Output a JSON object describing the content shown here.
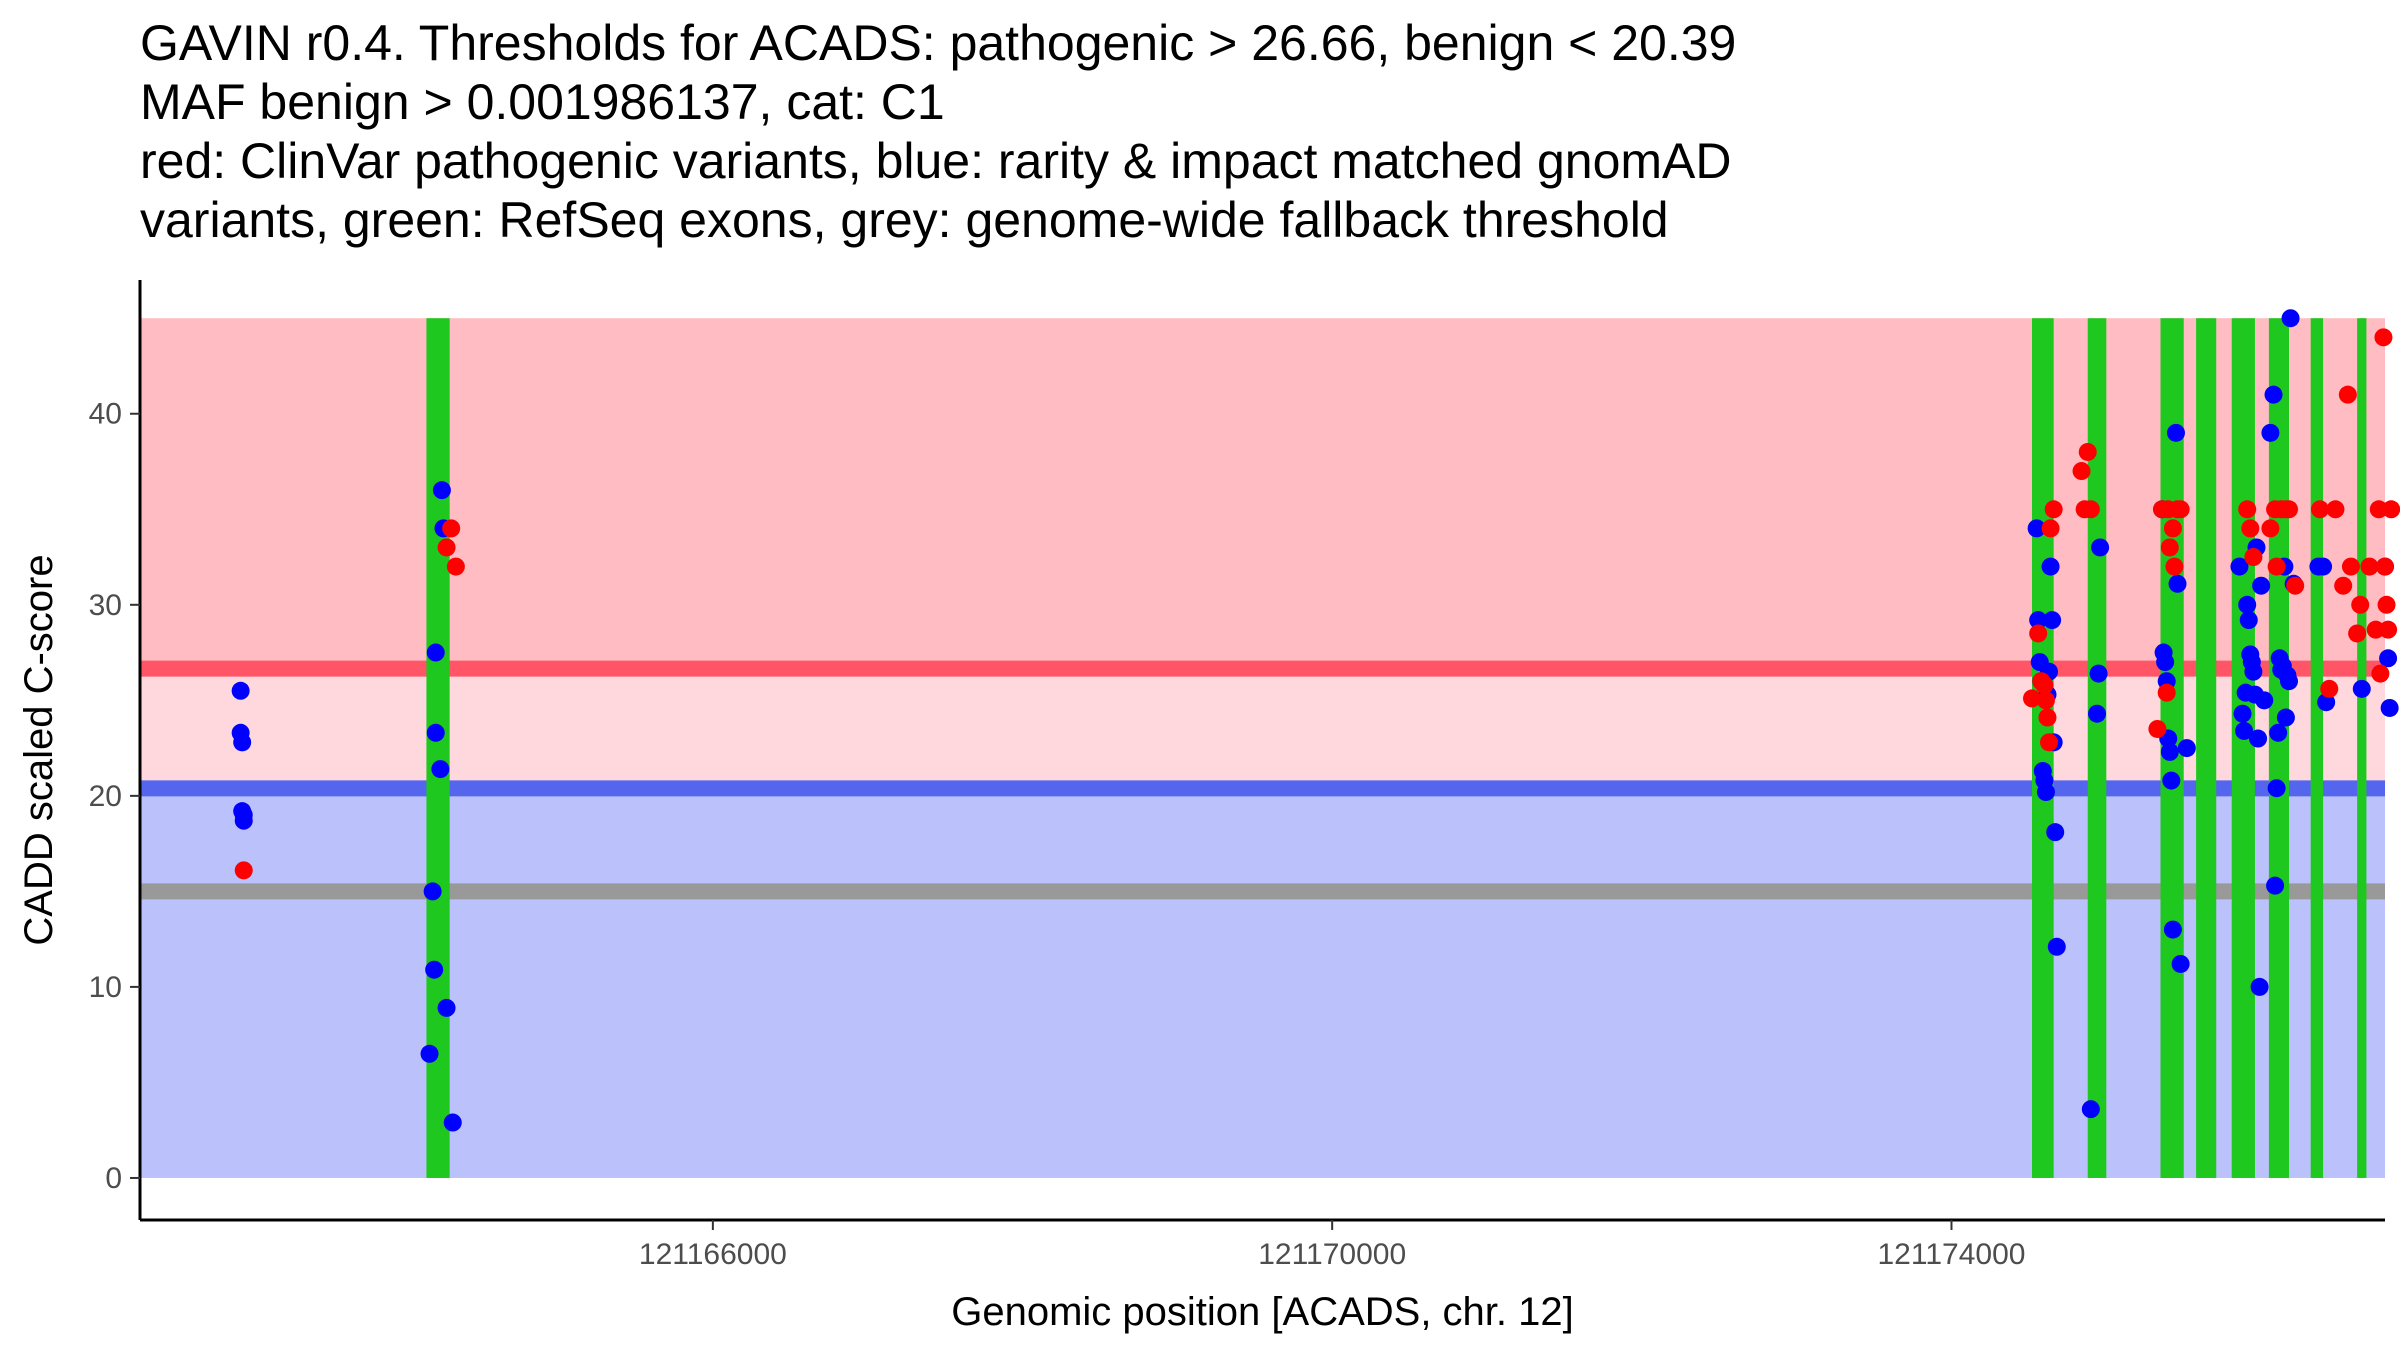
{
  "chart_data": {
    "type": "scatter",
    "title": [
      "GAVIN r0.4. Thresholds for ACADS: pathogenic > 26.66, benign < 20.39",
      "MAF benign > 0.001986137, cat: C1",
      "red: ClinVar pathogenic variants, blue: rarity & impact matched gnomAD",
      "variants, green: RefSeq exons, grey: genome-wide fallback threshold"
    ],
    "xlabel": "Genomic position [ACADS, chr. 12]",
    "ylabel": "CADD scaled C-score",
    "xlim": [
      121162300,
      121176800
    ],
    "ylim": [
      -2.2,
      47
    ],
    "x_ticks": [
      121166000,
      121170000,
      121174000
    ],
    "x_tick_labels": [
      "121166000",
      "121170000",
      "121174000"
    ],
    "y_ticks": [
      0,
      10,
      20,
      30,
      40
    ],
    "y_tick_labels": [
      "0",
      "10",
      "20",
      "30",
      "40"
    ],
    "grid": false,
    "region_xrange": [
      121162300,
      121176800
    ],
    "regions": [
      {
        "name": "pathogenic-region",
        "ymin": 26.66,
        "ymax": 45,
        "color": "#ffbcc2"
      },
      {
        "name": "intermediate-region",
        "ymin": 20.39,
        "ymax": 26.66,
        "color": "#ffd8de"
      },
      {
        "name": "benign-region",
        "ymin": 0,
        "ymax": 20.39,
        "color": "#bbc1fa"
      }
    ],
    "threshold_lines": [
      {
        "name": "pathogenic-threshold",
        "y": 26.66,
        "color": "#ff5566"
      },
      {
        "name": "benign-threshold",
        "y": 20.39,
        "color": "#5566ee"
      },
      {
        "name": "fallback-threshold",
        "y": 15.0,
        "color": "#999999"
      }
    ],
    "exons": [
      {
        "start": 121164150,
        "end": 121164300
      },
      {
        "start": 121174520,
        "end": 121174660
      },
      {
        "start": 121174880,
        "end": 121175000
      },
      {
        "start": 121175350,
        "end": 121175500
      },
      {
        "start": 121175580,
        "end": 121175710
      },
      {
        "start": 121175810,
        "end": 121175960
      },
      {
        "start": 121176050,
        "end": 121176180
      },
      {
        "start": 121176320,
        "end": 121176400
      },
      {
        "start": 121176620,
        "end": 121176680
      }
    ],
    "exon_color": "#1ec81e",
    "series": [
      {
        "name": "rarity & impact matched gnomAD variants",
        "color": "#0000ff",
        "x": [
          121162950,
          121162950,
          121162960,
          121162960,
          121162970,
          121162970,
          121164170,
          121164190,
          121164210,
          121164250,
          121164260,
          121164200,
          121164210,
          121164240,
          121164280,
          121164320,
          121174550,
          121174560,
          121174570,
          121174580,
          121174590,
          121174600,
          121174610,
          121174620,
          121174630,
          121174640,
          121174650,
          121174660,
          121174670,
          121174680,
          121174900,
          121174940,
          121174950,
          121174960,
          121175360,
          121175370,
          121175380,
          121175390,
          121175400,
          121175410,
          121175420,
          121175430,
          121175450,
          121175460,
          121175480,
          121175520,
          121175860,
          121175880,
          121175890,
          121175900,
          121175910,
          121175920,
          121175930,
          121175940,
          121175950,
          121175960,
          121175970,
          121175980,
          121175990,
          121176000,
          121176020,
          121176060,
          121176080,
          121176090,
          121176100,
          121176110,
          121176120,
          121176130,
          121176140,
          121176150,
          121176160,
          121176170,
          121176180,
          121176190,
          121176210,
          121176370,
          121176400,
          121176420,
          121176650,
          121176800,
          121176820,
          121176830
        ],
        "y": [
          25.5,
          23.3,
          22.8,
          19.2,
          19.0,
          18.7,
          6.5,
          15.0,
          27.5,
          36.0,
          34.0,
          10.9,
          23.3,
          21.4,
          8.9,
          2.9,
          34.0,
          29.2,
          27.0,
          26.0,
          21.3,
          20.8,
          20.2,
          25.3,
          26.5,
          32.0,
          29.2,
          22.8,
          18.1,
          12.1,
          3.6,
          24.3,
          26.4,
          33.0,
          35.0,
          27.5,
          27.0,
          26.0,
          23.0,
          22.3,
          20.8,
          13.0,
          39.0,
          31.1,
          11.2,
          22.5,
          32.0,
          24.3,
          23.4,
          25.4,
          30.0,
          29.2,
          27.4,
          27.0,
          26.5,
          25.3,
          33.0,
          23.0,
          10.0,
          31.0,
          25.0,
          39.0,
          41.0,
          15.3,
          20.4,
          23.3,
          27.2,
          26.6,
          26.8,
          32.0,
          24.1,
          26.3,
          26.0,
          45.0,
          31.1,
          32.0,
          32.0,
          24.9,
          25.6,
          32.0,
          27.2,
          24.6
        ]
      },
      {
        "name": "ClinVar pathogenic variants",
        "color": "#ff0000",
        "x": [
          121162970,
          121164280,
          121164310,
          121164340,
          121174520,
          121174560,
          121174580,
          121174600,
          121174610,
          121174620,
          121174630,
          121174640,
          121174660,
          121174840,
          121174860,
          121174880,
          121174900,
          121175330,
          121175360,
          121175390,
          121175400,
          121175410,
          121175430,
          121175440,
          121175460,
          121175480,
          121175910,
          121175930,
          121175950,
          121176060,
          121176090,
          121176100,
          121176130,
          121176160,
          121176180,
          121176220,
          121176380,
          121176440,
          121176480,
          121176530,
          121176560,
          121176580,
          121176620,
          121176640,
          121176700,
          121176740,
          121176760,
          121176770,
          121176790,
          121176800,
          121176810,
          121176820,
          121176840
        ],
        "y": [
          16.1,
          33.0,
          34.0,
          32.0,
          25.1,
          28.5,
          26.0,
          25.8,
          25.0,
          24.1,
          22.8,
          34.0,
          35.0,
          37.0,
          35.0,
          38.0,
          35.0,
          23.5,
          35.0,
          25.4,
          35.0,
          33.0,
          34.0,
          32.0,
          35.0,
          35.0,
          35.0,
          34.0,
          32.5,
          34.0,
          35.0,
          32.0,
          35.0,
          35.0,
          35.0,
          31.0,
          35.0,
          25.6,
          35.0,
          31.0,
          41.0,
          32.0,
          28.5,
          30.0,
          32.0,
          28.7,
          35.0,
          26.4,
          44.0,
          32.0,
          30.0,
          28.7,
          35.0
        ]
      }
    ]
  }
}
